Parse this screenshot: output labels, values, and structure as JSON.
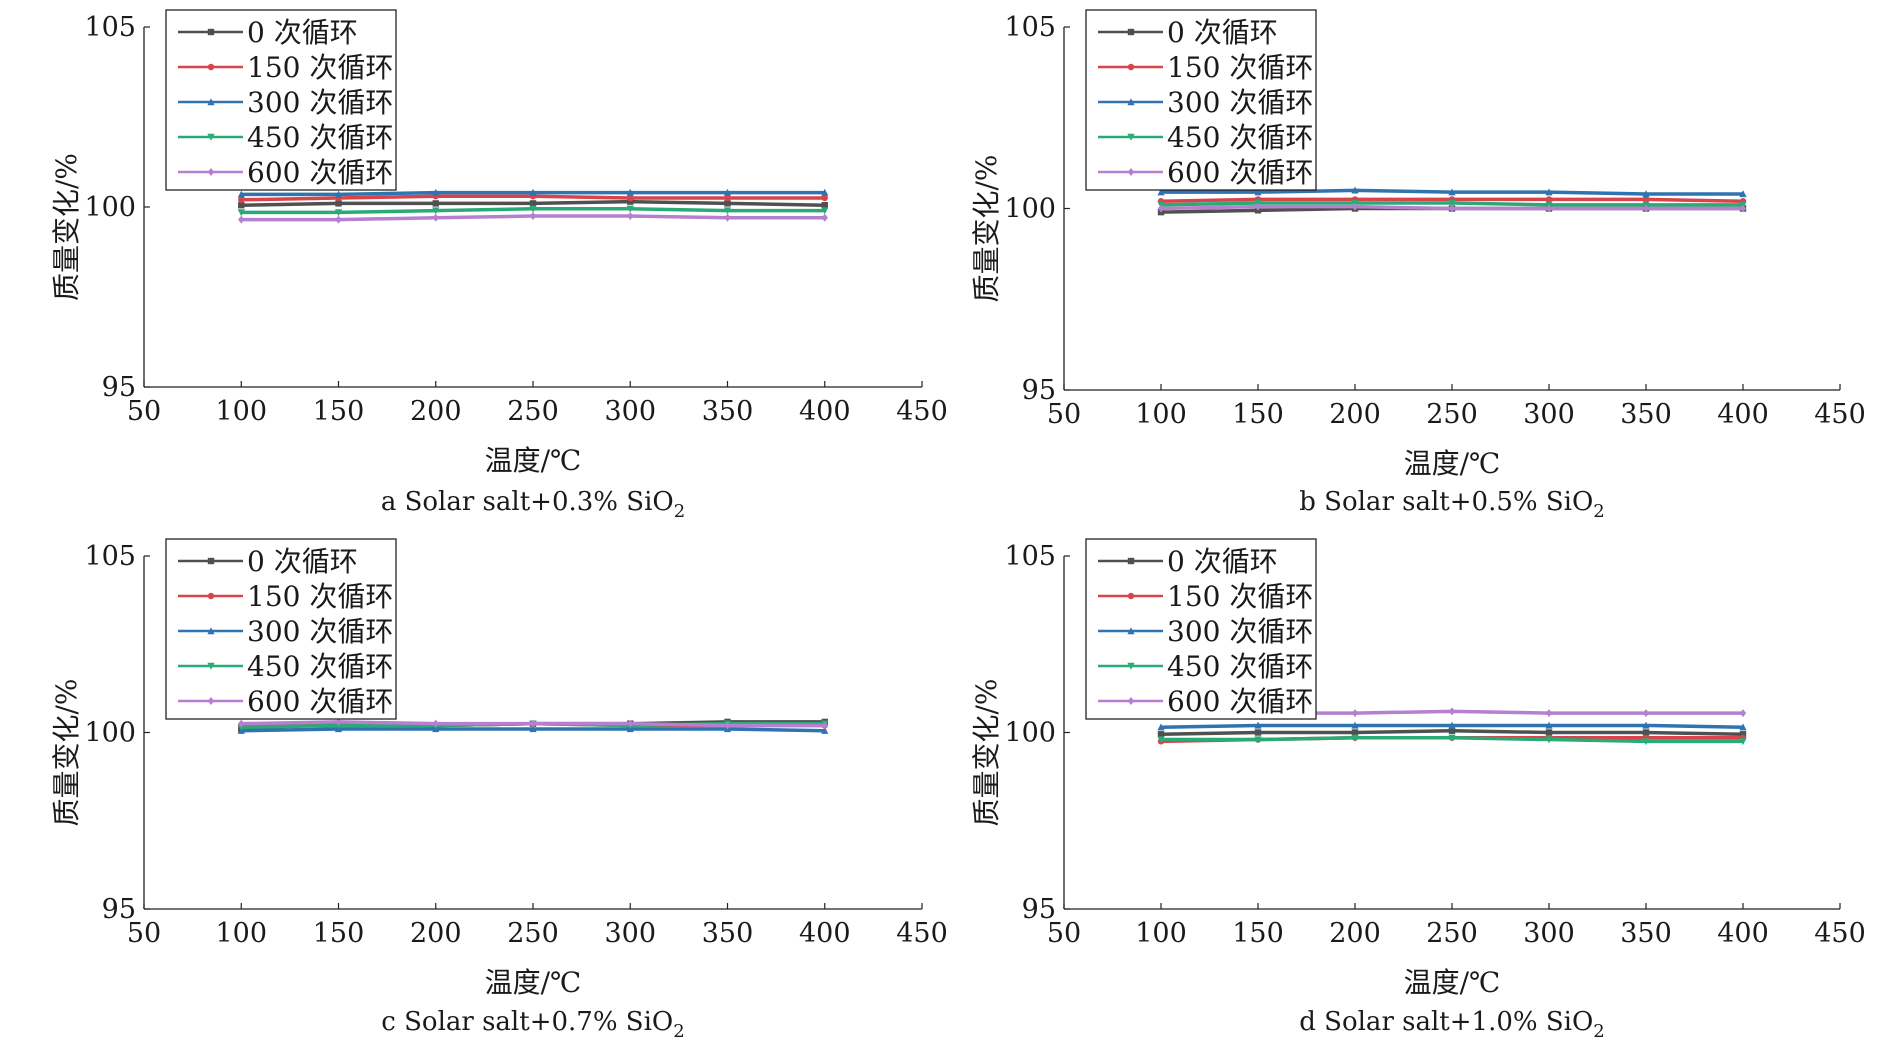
{
  "chart_data": [
    {
      "type": "line",
      "caption_letter": "a",
      "caption_text": "Solar salt+0.3% SiO",
      "caption_sub": "2",
      "xlabel": "温度/℃",
      "ylabel": "质量变化/%",
      "xlim": [
        50,
        450
      ],
      "ylim": [
        95,
        105
      ],
      "xticks": [
        "50",
        "100",
        "150",
        "200",
        "250",
        "300",
        "350",
        "400",
        "450"
      ],
      "yticks": [
        "95",
        "100",
        "105"
      ],
      "grid": false,
      "legend_position": "top-left",
      "x": [
        100,
        150,
        200,
        250,
        300,
        350,
        400
      ],
      "series": [
        {
          "name": "0 次循环",
          "values": [
            100.05,
            100.1,
            100.1,
            100.1,
            100.15,
            100.1,
            100.05
          ]
        },
        {
          "name": "150 次循环",
          "values": [
            100.2,
            100.25,
            100.3,
            100.3,
            100.25,
            100.25,
            100.25
          ]
        },
        {
          "name": "300 次循环",
          "values": [
            100.35,
            100.35,
            100.4,
            100.4,
            100.4,
            100.4,
            100.4
          ]
        },
        {
          "name": "450 次循环",
          "values": [
            99.85,
            99.85,
            99.9,
            99.95,
            99.95,
            99.9,
            99.9
          ]
        },
        {
          "name": "600 次循环",
          "values": [
            99.65,
            99.65,
            99.7,
            99.75,
            99.75,
            99.7,
            99.7
          ]
        }
      ]
    },
    {
      "type": "line",
      "caption_letter": "b",
      "caption_text": "Solar salt+0.5% SiO",
      "caption_sub": "2",
      "xlabel": "温度/℃",
      "ylabel": "质量变化/%",
      "xlim": [
        50,
        450
      ],
      "ylim": [
        95,
        105
      ],
      "xticks": [
        "50",
        "100",
        "150",
        "200",
        "250",
        "300",
        "350",
        "400",
        "450"
      ],
      "yticks": [
        "95",
        "100",
        "105"
      ],
      "grid": false,
      "legend_position": "top-left",
      "x": [
        100,
        150,
        200,
        250,
        300,
        350,
        400
      ],
      "series": [
        {
          "name": "0 次循环",
          "values": [
            99.9,
            99.95,
            100.0,
            100.0,
            100.0,
            100.0,
            100.0
          ]
        },
        {
          "name": "150 次循环",
          "values": [
            100.2,
            100.25,
            100.25,
            100.25,
            100.25,
            100.25,
            100.2
          ]
        },
        {
          "name": "300 次循环",
          "values": [
            100.45,
            100.45,
            100.5,
            100.45,
            100.45,
            100.4,
            100.4
          ]
        },
        {
          "name": "450 次循环",
          "values": [
            100.1,
            100.15,
            100.15,
            100.15,
            100.1,
            100.1,
            100.1
          ]
        },
        {
          "name": "600 次循环",
          "values": [
            100.0,
            100.05,
            100.05,
            100.0,
            100.0,
            100.0,
            100.0
          ]
        }
      ]
    },
    {
      "type": "line",
      "caption_letter": "c",
      "caption_text": "Solar salt+0.7% SiO",
      "caption_sub": "2",
      "xlabel": "温度/℃",
      "ylabel": "质量变化/%",
      "xlim": [
        50,
        450
      ],
      "ylim": [
        95,
        105
      ],
      "xticks": [
        "50",
        "100",
        "150",
        "200",
        "250",
        "300",
        "350",
        "400",
        "450"
      ],
      "yticks": [
        "95",
        "100",
        "105"
      ],
      "grid": false,
      "legend_position": "top-left",
      "x": [
        100,
        150,
        200,
        250,
        300,
        350,
        400
      ],
      "series": [
        {
          "name": "0 次循环",
          "values": [
            100.1,
            100.25,
            100.2,
            100.25,
            100.25,
            100.3,
            100.3
          ]
        },
        {
          "name": "150 次循环",
          "values": [
            100.2,
            100.2,
            100.2,
            100.25,
            100.2,
            100.2,
            100.2
          ]
        },
        {
          "name": "300 次循环",
          "values": [
            100.05,
            100.1,
            100.1,
            100.1,
            100.1,
            100.1,
            100.05
          ]
        },
        {
          "name": "450 次循环",
          "values": [
            100.15,
            100.2,
            100.2,
            100.25,
            100.2,
            100.25,
            100.25
          ]
        },
        {
          "name": "600 次循环",
          "values": [
            100.25,
            100.3,
            100.25,
            100.25,
            100.25,
            100.2,
            100.2
          ]
        }
      ]
    },
    {
      "type": "line",
      "caption_letter": "d",
      "caption_text": "Solar salt+1.0% SiO",
      "caption_sub": "2",
      "xlabel": "温度/℃",
      "ylabel": "质量变化/%",
      "xlim": [
        50,
        450
      ],
      "ylim": [
        95,
        105
      ],
      "xticks": [
        "50",
        "100",
        "150",
        "200",
        "250",
        "300",
        "350",
        "400",
        "450"
      ],
      "yticks": [
        "95",
        "100",
        "105"
      ],
      "grid": false,
      "legend_position": "top-left",
      "x": [
        100,
        150,
        200,
        250,
        300,
        350,
        400
      ],
      "series": [
        {
          "name": "0 次循环",
          "values": [
            99.95,
            100.0,
            100.0,
            100.05,
            100.0,
            100.0,
            99.95
          ]
        },
        {
          "name": "150 次循环",
          "values": [
            99.75,
            99.8,
            99.85,
            99.85,
            99.85,
            99.85,
            99.85
          ]
        },
        {
          "name": "300 次循环",
          "values": [
            100.15,
            100.2,
            100.2,
            100.2,
            100.2,
            100.2,
            100.15
          ]
        },
        {
          "name": "450 次循环",
          "values": [
            99.8,
            99.8,
            99.85,
            99.85,
            99.8,
            99.75,
            99.75
          ]
        },
        {
          "name": "600 次循环",
          "values": [
            100.5,
            100.55,
            100.55,
            100.6,
            100.55,
            100.55,
            100.55
          ]
        }
      ]
    }
  ],
  "colors": [
    "#505050",
    "#d9434b",
    "#2f73b0",
    "#2aaa77",
    "#b77fcf"
  ],
  "markers": [
    "square",
    "circle",
    "triangle-up",
    "triangle-down",
    "diamond"
  ]
}
